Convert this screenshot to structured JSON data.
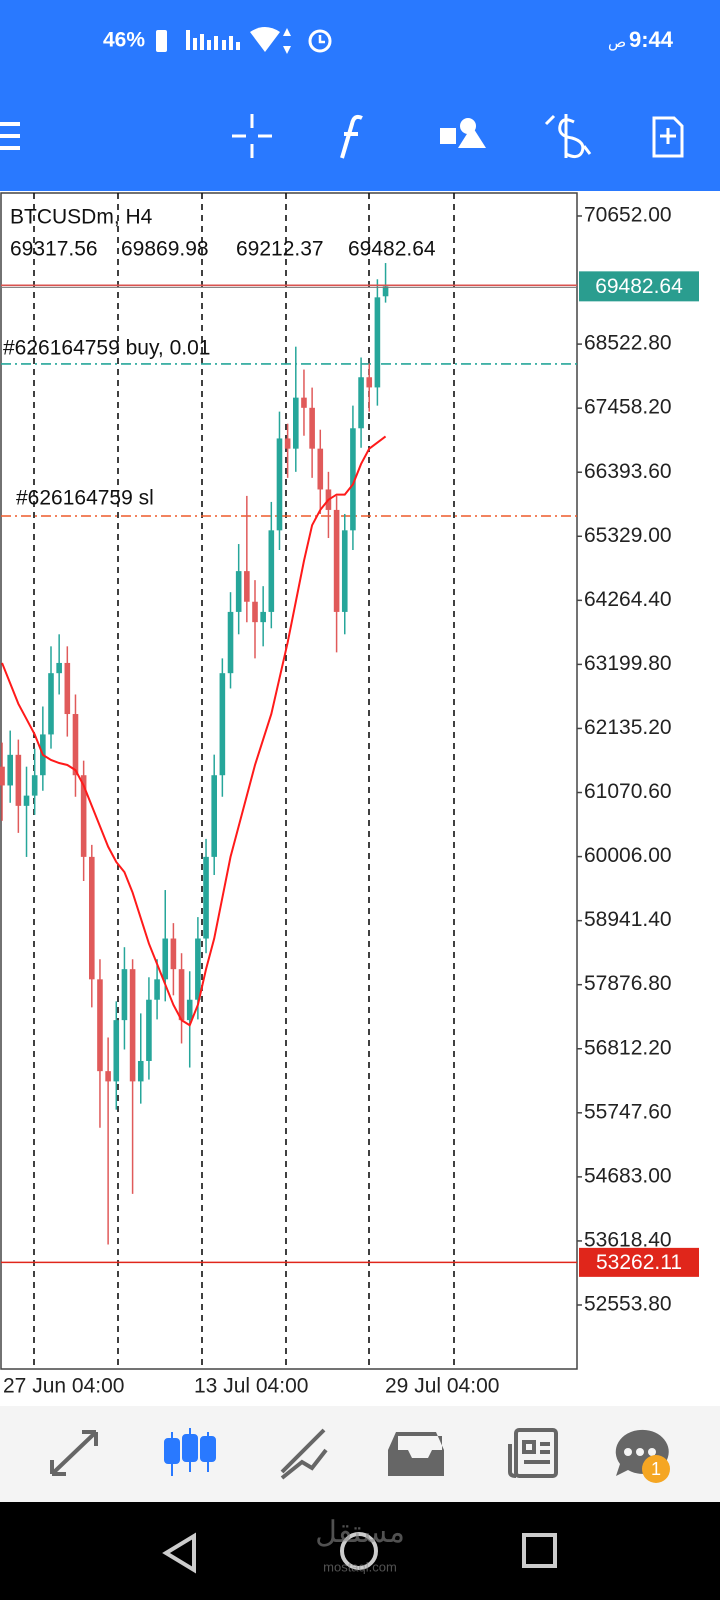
{
  "status_bar": {
    "battery": "46%",
    "time": "9:44",
    "ampm": "ص"
  },
  "chart_data": {
    "type": "candlestick",
    "title": "BTCUSDm, H4",
    "open": [
      61500,
      61188,
      61697,
      60849,
      61019,
      61358,
      62036,
      63054,
      63224,
      62375,
      61358,
      60001,
      57966,
      56440,
      56270,
      57288,
      58135,
      56270,
      56609,
      57627,
      57966,
      58644,
      58135,
      57288,
      57627,
      58644,
      60001,
      61358,
      63054,
      64072,
      64750,
      64241,
      63902,
      64072,
      65428,
      66955,
      66785,
      67633,
      67464,
      66785,
      66107,
      65767,
      64072,
      65428,
      67124,
      67972,
      67803,
      69317.56
    ],
    "high": [
      61900,
      62100,
      61950,
      61500,
      61800,
      62500,
      63500,
      63700,
      63500,
      62700,
      61600,
      60200,
      58300,
      57000,
      57600,
      58500,
      58300,
      57400,
      58000,
      58300,
      59450,
      58900,
      58400,
      58100,
      59000,
      60300,
      61700,
      63300,
      64400,
      65200,
      66000,
      64600,
      64500,
      65900,
      67400,
      67200,
      68480,
      68100,
      67800,
      67100,
      66400,
      66000,
      65700,
      67500,
      68300,
      68200,
      69600,
      69869.98
    ],
    "low": [
      60600,
      60900,
      60400,
      60000,
      60700,
      61100,
      61800,
      62700,
      62000,
      61000,
      59600,
      57500,
      55500,
      53560,
      55800,
      56800,
      54400,
      55900,
      56300,
      57300,
      57600,
      57700,
      56900,
      56500,
      57300,
      58400,
      59700,
      61000,
      62800,
      63700,
      63900,
      63300,
      63500,
      63800,
      65100,
      66300,
      66400,
      67000,
      66300,
      65700,
      65300,
      63400,
      63700,
      65100,
      66800,
      67400,
      67500,
      69212.37
    ],
    "close": [
      61188,
      61697,
      60849,
      61019,
      61358,
      62036,
      63054,
      63224,
      62375,
      61358,
      60001,
      57966,
      56440,
      56270,
      57288,
      58135,
      56270,
      56609,
      57627,
      57966,
      58644,
      58135,
      57288,
      57627,
      58644,
      60001,
      61358,
      63054,
      64072,
      64750,
      64241,
      63902,
      64072,
      65428,
      66955,
      66785,
      67633,
      67464,
      66785,
      66107,
      65767,
      64072,
      65428,
      67124,
      67972,
      67803,
      69300,
      69482.64
    ],
    "ma": [
      63224,
      62884,
      62545,
      62291,
      62036,
      61697,
      61612,
      61561,
      61528,
      61443,
      61188,
      60849,
      60510,
      60171,
      59916,
      59747,
      59408,
      58984,
      58560,
      58220,
      57881,
      57542,
      57288,
      57203,
      57542,
      58136,
      58644,
      59323,
      60001,
      60510,
      61019,
      61528,
      61952,
      62376,
      62969,
      63563,
      64241,
      64920,
      65513,
      65768,
      65937,
      66022,
      66022,
      66192,
      66531,
      66785,
      66887,
      66989
    ],
    "up_color": "#26a69a",
    "down_color": "#e05a5a",
    "ma_color": "#ff1a1a",
    "ylim": [
      51490,
      71034
    ],
    "yticks": [
      {
        "value": 70652.0,
        "label": "70652.00"
      },
      {
        "value": 68522.8,
        "label": "68522.80"
      },
      {
        "value": 67458.2,
        "label": "67458.20"
      },
      {
        "value": 66393.6,
        "label": "66393.60"
      },
      {
        "value": 65329.0,
        "label": "65329.00"
      },
      {
        "value": 64264.4,
        "label": "64264.40"
      },
      {
        "value": 63199.8,
        "label": "63199.80"
      },
      {
        "value": 62135.2,
        "label": "62135.20"
      },
      {
        "value": 61070.6,
        "label": "61070.60"
      },
      {
        "value": 60006.0,
        "label": "60006.00"
      },
      {
        "value": 58941.4,
        "label": "58941.40"
      },
      {
        "value": 57876.8,
        "label": "57876.80"
      },
      {
        "value": 56812.2,
        "label": "56812.20"
      },
      {
        "value": 55747.6,
        "label": "55747.60"
      },
      {
        "value": 54683.0,
        "label": "54683.00"
      },
      {
        "value": 53618.4,
        "label": "53618.40"
      },
      {
        "value": 52553.8,
        "label": "52553.80"
      }
    ],
    "x_labels": [
      "27 Jun 04:00",
      "13 Jul 04:00",
      "29 Jul 04:00"
    ],
    "orders": [
      {
        "label": "#626164759 buy, 0.01",
        "price": 68193,
        "color": "#26a69a"
      },
      {
        "label": "#626164759 sl",
        "price": 65666,
        "color": "#ee5a2a"
      }
    ],
    "price_color": "#2a9d8f",
    "level": {
      "value": 53262.11,
      "color": "#e0261b"
    }
  },
  "bottom_nav": {
    "chat_badge": 1
  },
  "watermark": {
    "arabic": "مستقل",
    "latin": "mostaql.com"
  }
}
